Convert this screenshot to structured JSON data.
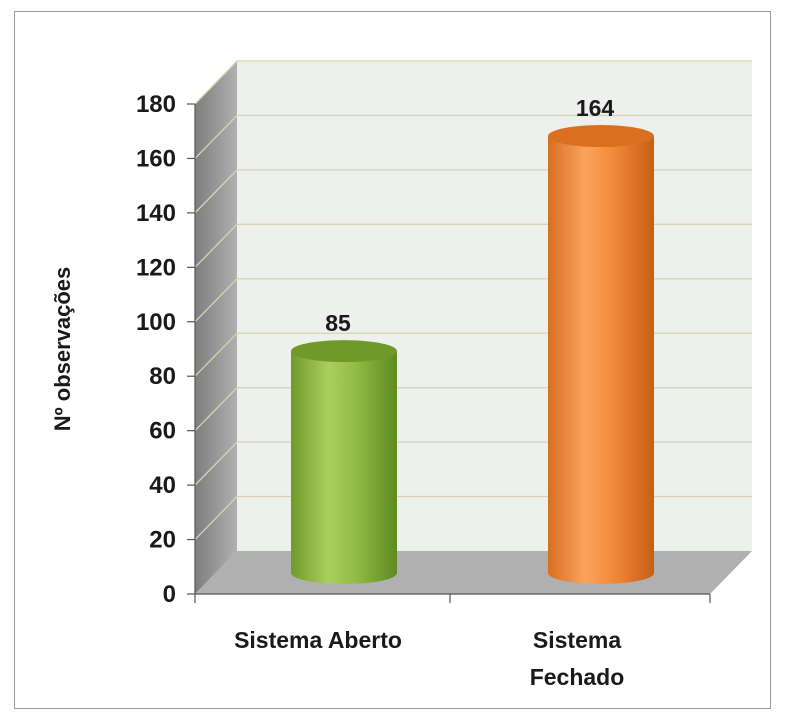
{
  "chart_data": {
    "type": "bar",
    "categories": [
      "Sistema Aberto",
      "Sistema Fechado"
    ],
    "category_lines": [
      [
        "Sistema Aberto"
      ],
      [
        "Sistema",
        "Fechado"
      ]
    ],
    "values": [
      85,
      164
    ],
    "data_labels": [
      "85",
      "164"
    ],
    "title": "",
    "xlabel": "",
    "ylabel": "Nº observações",
    "ylim": [
      0,
      180
    ],
    "yticks": [
      0,
      20,
      40,
      60,
      80,
      100,
      120,
      140,
      160,
      180
    ],
    "grid": true,
    "legend": "none",
    "style": "3d-cylinder",
    "colors": {
      "bars": [
        "#8db33f",
        "#f0873a"
      ],
      "bar_tops": [
        "#6f9a2a",
        "#d9701f"
      ],
      "back_wall": "#eef0ee",
      "side_wall": "#9a9a9a",
      "floor": "#b0b0b0",
      "gridline": "#d9d3b0"
    }
  }
}
